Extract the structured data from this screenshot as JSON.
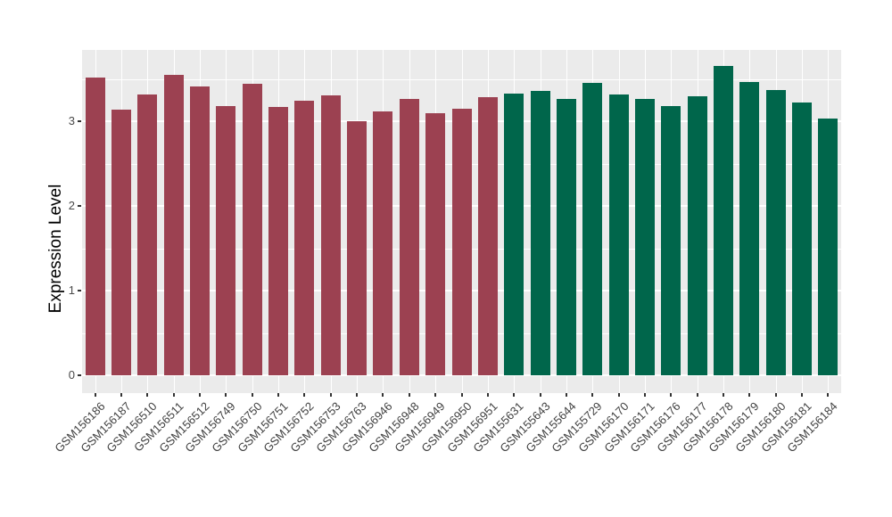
{
  "chart_data": {
    "type": "bar",
    "ylabel": "Expression Level",
    "yticks": [
      0,
      1,
      2,
      3
    ],
    "ylim": [
      0,
      3.88
    ],
    "grid": true,
    "legend": "none",
    "palette": {
      "maroon": "#9C4151",
      "green": "#00664B"
    },
    "categories": [
      "GSM156186",
      "GSM156187",
      "GSM156510",
      "GSM156511",
      "GSM156512",
      "GSM156749",
      "GSM156750",
      "GSM156751",
      "GSM156752",
      "GSM156753",
      "GSM156763",
      "GSM156946",
      "GSM156948",
      "GSM156949",
      "GSM156950",
      "GSM156951",
      "GSM155631",
      "GSM155643",
      "GSM155644",
      "GSM155729",
      "GSM156170",
      "GSM156171",
      "GSM156176",
      "GSM156177",
      "GSM156178",
      "GSM156179",
      "GSM156180",
      "GSM156181",
      "GSM156184"
    ],
    "values": [
      3.52,
      3.14,
      3.32,
      3.55,
      3.41,
      3.18,
      3.44,
      3.17,
      3.24,
      3.31,
      3.0,
      3.12,
      3.26,
      3.09,
      3.15,
      3.28,
      3.33,
      3.36,
      3.26,
      3.45,
      3.32,
      3.26,
      3.18,
      3.29,
      3.65,
      3.46,
      3.37,
      3.22,
      3.03
    ],
    "bar_groups": [
      "maroon",
      "maroon",
      "maroon",
      "maroon",
      "maroon",
      "maroon",
      "maroon",
      "maroon",
      "maroon",
      "maroon",
      "maroon",
      "maroon",
      "maroon",
      "maroon",
      "maroon",
      "maroon",
      "green",
      "green",
      "green",
      "green",
      "green",
      "green",
      "green",
      "green",
      "green",
      "green",
      "green",
      "green",
      "green"
    ]
  }
}
